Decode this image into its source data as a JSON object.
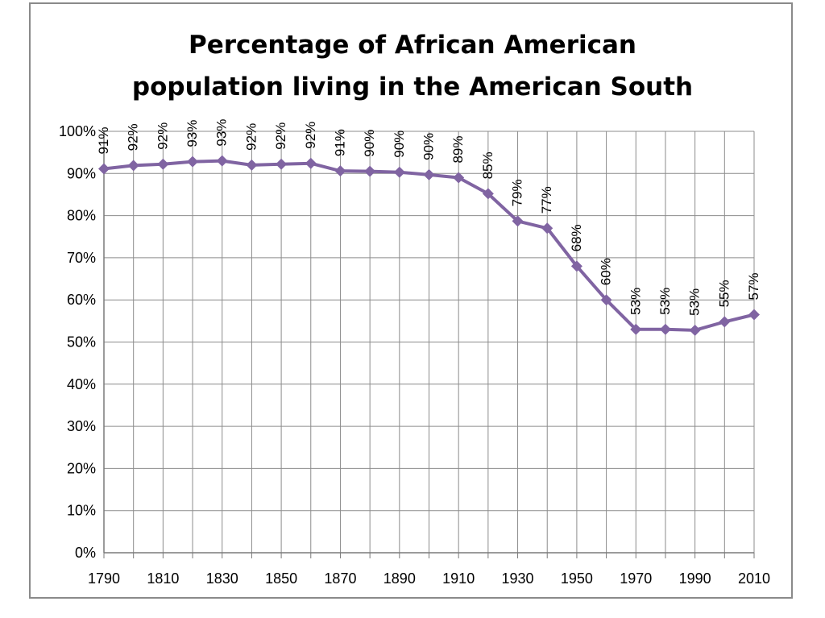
{
  "chart_data": {
    "type": "line",
    "title_line1": "Percentage of African American",
    "title_line2": "population living in the American South",
    "xlabel": "",
    "ylabel": "",
    "x": [
      1790,
      1800,
      1810,
      1820,
      1830,
      1840,
      1850,
      1860,
      1870,
      1880,
      1890,
      1900,
      1910,
      1920,
      1930,
      1940,
      1950,
      1960,
      1970,
      1980,
      1990,
      2000,
      2010
    ],
    "values": [
      91.1,
      91.9,
      92.2,
      92.8,
      93.0,
      92.0,
      92.2,
      92.4,
      90.6,
      90.5,
      90.3,
      89.7,
      89.0,
      85.2,
      78.7,
      77.0,
      68.0,
      60.0,
      53.0,
      53.0,
      52.8,
      54.8,
      56.5
    ],
    "data_labels": [
      "91%",
      "92%",
      "92%",
      "93%",
      "93%",
      "92%",
      "92%",
      "92%",
      "91%",
      "90%",
      "90%",
      "90%",
      "89%",
      "85%",
      "79%",
      "77%",
      "68%",
      "60%",
      "53%",
      "53%",
      "53%",
      "55%",
      "57%"
    ],
    "x_tick_labels": [
      "1790",
      "1810",
      "1830",
      "1850",
      "1870",
      "1890",
      "1910",
      "1930",
      "1950",
      "1970",
      "1990",
      "2010"
    ],
    "y_tick_labels": [
      "0%",
      "10%",
      "20%",
      "30%",
      "40%",
      "50%",
      "60%",
      "70%",
      "80%",
      "90%",
      "100%"
    ],
    "ylim": [
      0,
      100
    ],
    "xlim": [
      1790,
      2010
    ],
    "grid": true,
    "series_color": "#8064a2",
    "grid_color": "#8c8c8c"
  }
}
